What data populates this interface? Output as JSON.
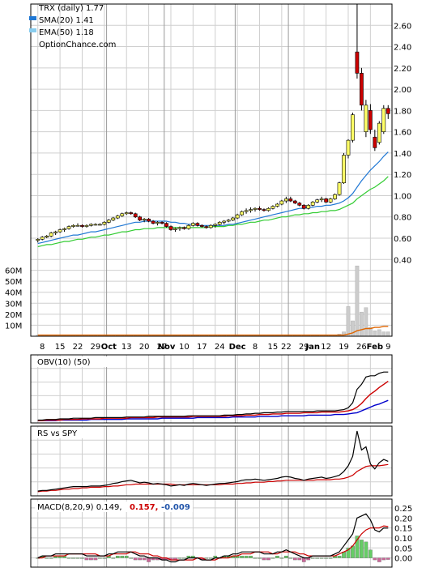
{
  "chart_data": {
    "type": "candlestick",
    "legend": {
      "title": "TRX (daily) 1.77",
      "sma": "SMA(20) 1.41",
      "ema": "EMA(50) 1.18",
      "source": "OptionChance.com"
    },
    "colors": {
      "up": "#ffff66",
      "down": "#cc0000",
      "sma": "#1f77d4",
      "ema": "#33cc33",
      "volume": "#cccccc",
      "volume_avg": "#e06600",
      "obv": "#000000",
      "obv_avg": "#cc0000",
      "obv_long": "#0000cc",
      "rs": "#000000",
      "rs_avg": "#cc0000",
      "macd": "#000000",
      "macd_signal": "#cc0000",
      "hist_up": "#66cc66",
      "hist_down": "#cc6699"
    },
    "price_axis": {
      "ticks": [
        "2.60",
        "2.40",
        "2.20",
        "2.00",
        "1.80",
        "1.60",
        "1.40",
        "1.20",
        "1.00",
        "0.80",
        "0.60",
        "0.40"
      ],
      "range": [
        0.25,
        2.8
      ]
    },
    "volume_axis": {
      "ticks": [
        "60M",
        "50M",
        "40M",
        "30M",
        "20M",
        "10M"
      ],
      "range": [
        0,
        70
      ]
    },
    "x_ticks": [
      "8",
      "15",
      "22",
      "29",
      "Oct",
      "13",
      "20",
      "27",
      "Nov",
      "10",
      "17",
      "24",
      "Dec",
      "8",
      "15",
      "22",
      "29",
      "Jan",
      "12",
      "19",
      "26",
      "Feb",
      "9"
    ],
    "candles": [
      [
        0.58,
        0.6,
        0.56,
        0.59
      ],
      [
        0.59,
        0.62,
        0.58,
        0.61
      ],
      [
        0.61,
        0.63,
        0.6,
        0.62
      ],
      [
        0.62,
        0.66,
        0.61,
        0.65
      ],
      [
        0.65,
        0.67,
        0.63,
        0.66
      ],
      [
        0.66,
        0.69,
        0.65,
        0.68
      ],
      [
        0.68,
        0.7,
        0.66,
        0.69
      ],
      [
        0.69,
        0.72,
        0.68,
        0.71
      ],
      [
        0.71,
        0.73,
        0.7,
        0.72
      ],
      [
        0.72,
        0.74,
        0.71,
        0.72
      ],
      [
        0.72,
        0.73,
        0.7,
        0.71
      ],
      [
        0.71,
        0.73,
        0.7,
        0.72
      ],
      [
        0.72,
        0.74,
        0.71,
        0.73
      ],
      [
        0.73,
        0.74,
        0.72,
        0.73
      ],
      [
        0.73,
        0.74,
        0.72,
        0.73
      ],
      [
        0.73,
        0.76,
        0.72,
        0.75
      ],
      [
        0.75,
        0.78,
        0.74,
        0.77
      ],
      [
        0.77,
        0.8,
        0.76,
        0.79
      ],
      [
        0.79,
        0.82,
        0.78,
        0.81
      ],
      [
        0.81,
        0.84,
        0.8,
        0.83
      ],
      [
        0.83,
        0.85,
        0.82,
        0.84
      ],
      [
        0.84,
        0.85,
        0.82,
        0.83
      ],
      [
        0.83,
        0.84,
        0.79,
        0.8
      ],
      [
        0.8,
        0.81,
        0.76,
        0.77
      ],
      [
        0.77,
        0.79,
        0.75,
        0.78
      ],
      [
        0.78,
        0.79,
        0.75,
        0.76
      ],
      [
        0.76,
        0.77,
        0.73,
        0.74
      ],
      [
        0.74,
        0.76,
        0.72,
        0.75
      ],
      [
        0.75,
        0.76,
        0.73,
        0.74
      ],
      [
        0.74,
        0.75,
        0.7,
        0.71
      ],
      [
        0.71,
        0.72,
        0.67,
        0.68
      ],
      [
        0.68,
        0.7,
        0.66,
        0.69
      ],
      [
        0.69,
        0.71,
        0.67,
        0.7
      ],
      [
        0.7,
        0.71,
        0.68,
        0.69
      ],
      [
        0.69,
        0.73,
        0.68,
        0.72
      ],
      [
        0.72,
        0.75,
        0.71,
        0.74
      ],
      [
        0.74,
        0.75,
        0.71,
        0.72
      ],
      [
        0.72,
        0.73,
        0.7,
        0.71
      ],
      [
        0.71,
        0.72,
        0.69,
        0.7
      ],
      [
        0.7,
        0.73,
        0.69,
        0.72
      ],
      [
        0.72,
        0.74,
        0.7,
        0.73
      ],
      [
        0.73,
        0.76,
        0.72,
        0.75
      ],
      [
        0.75,
        0.77,
        0.73,
        0.76
      ],
      [
        0.76,
        0.78,
        0.75,
        0.77
      ],
      [
        0.77,
        0.8,
        0.76,
        0.79
      ],
      [
        0.79,
        0.83,
        0.78,
        0.82
      ],
      [
        0.82,
        0.86,
        0.81,
        0.85
      ],
      [
        0.85,
        0.88,
        0.83,
        0.86
      ],
      [
        0.86,
        0.89,
        0.84,
        0.87
      ],
      [
        0.87,
        0.89,
        0.85,
        0.88
      ],
      [
        0.88,
        0.9,
        0.86,
        0.87
      ],
      [
        0.87,
        0.88,
        0.85,
        0.86
      ],
      [
        0.86,
        0.89,
        0.85,
        0.88
      ],
      [
        0.88,
        0.91,
        0.87,
        0.9
      ],
      [
        0.9,
        0.93,
        0.89,
        0.92
      ],
      [
        0.92,
        0.96,
        0.91,
        0.95
      ],
      [
        0.95,
        0.99,
        0.93,
        0.97
      ],
      [
        0.97,
        0.99,
        0.94,
        0.95
      ],
      [
        0.95,
        0.96,
        0.92,
        0.93
      ],
      [
        0.93,
        0.94,
        0.9,
        0.91
      ],
      [
        0.91,
        0.92,
        0.87,
        0.88
      ],
      [
        0.88,
        0.92,
        0.87,
        0.91
      ],
      [
        0.91,
        0.95,
        0.9,
        0.94
      ],
      [
        0.94,
        0.97,
        0.93,
        0.96
      ],
      [
        0.96,
        0.99,
        0.94,
        0.97
      ],
      [
        0.97,
        0.98,
        0.93,
        0.94
      ],
      [
        0.94,
        0.98,
        0.93,
        0.97
      ],
      [
        0.97,
        1.02,
        0.96,
        1.01
      ],
      [
        1.01,
        1.13,
        1.0,
        1.12
      ],
      [
        1.12,
        1.4,
        1.11,
        1.38
      ],
      [
        1.38,
        1.53,
        1.35,
        1.52
      ],
      [
        1.52,
        1.78,
        1.5,
        1.76
      ],
      [
        2.35,
        2.8,
        2.1,
        2.15
      ],
      [
        2.15,
        2.2,
        1.8,
        1.85
      ],
      [
        1.6,
        1.9,
        1.55,
        1.85
      ],
      [
        1.8,
        1.86,
        1.58,
        1.62
      ],
      [
        1.55,
        1.62,
        1.42,
        1.45
      ],
      [
        1.5,
        1.7,
        1.48,
        1.68
      ],
      [
        1.6,
        1.85,
        1.58,
        1.82
      ],
      [
        1.82,
        1.85,
        1.72,
        1.77
      ]
    ],
    "sma20": [
      0.55,
      0.56,
      0.57,
      0.58,
      0.59,
      0.6,
      0.61,
      0.62,
      0.63,
      0.63,
      0.64,
      0.65,
      0.66,
      0.66,
      0.67,
      0.68,
      0.69,
      0.7,
      0.71,
      0.72,
      0.73,
      0.74,
      0.75,
      0.75,
      0.76,
      0.76,
      0.76,
      0.76,
      0.76,
      0.76,
      0.75,
      0.75,
      0.74,
      0.74,
      0.73,
      0.73,
      0.72,
      0.72,
      0.72,
      0.72,
      0.72,
      0.72,
      0.72,
      0.73,
      0.73,
      0.74,
      0.75,
      0.76,
      0.77,
      0.78,
      0.79,
      0.8,
      0.81,
      0.82,
      0.83,
      0.84,
      0.85,
      0.86,
      0.87,
      0.88,
      0.88,
      0.89,
      0.89,
      0.9,
      0.9,
      0.91,
      0.91,
      0.92,
      0.93,
      0.95,
      0.98,
      1.02,
      1.08,
      1.14,
      1.19,
      1.24,
      1.28,
      1.32,
      1.37,
      1.41
    ],
    "ema50": [
      0.52,
      0.53,
      0.54,
      0.54,
      0.55,
      0.56,
      0.57,
      0.57,
      0.58,
      0.59,
      0.59,
      0.6,
      0.61,
      0.61,
      0.62,
      0.63,
      0.63,
      0.64,
      0.65,
      0.66,
      0.66,
      0.67,
      0.68,
      0.68,
      0.69,
      0.69,
      0.69,
      0.7,
      0.7,
      0.7,
      0.7,
      0.7,
      0.7,
      0.7,
      0.7,
      0.7,
      0.7,
      0.7,
      0.7,
      0.71,
      0.71,
      0.71,
      0.71,
      0.72,
      0.72,
      0.73,
      0.73,
      0.74,
      0.75,
      0.75,
      0.76,
      0.77,
      0.77,
      0.78,
      0.79,
      0.8,
      0.8,
      0.81,
      0.82,
      0.82,
      0.83,
      0.83,
      0.84,
      0.84,
      0.85,
      0.85,
      0.86,
      0.86,
      0.87,
      0.89,
      0.91,
      0.93,
      0.97,
      1.0,
      1.03,
      1.06,
      1.08,
      1.11,
      1.14,
      1.18
    ],
    "volume": [
      1,
      1,
      1,
      1,
      1,
      1,
      1,
      1,
      1,
      1,
      1,
      1,
      1,
      1,
      1,
      1,
      1,
      1,
      1,
      1,
      1,
      1,
      1,
      1,
      1,
      1,
      1,
      1,
      1,
      1,
      1,
      1,
      1,
      1,
      1,
      1,
      1,
      1,
      1,
      1,
      1,
      1,
      1,
      1,
      1,
      1,
      1,
      1,
      1,
      1,
      1,
      1,
      1,
      1,
      1,
      1,
      1,
      1,
      1,
      1,
      1,
      1,
      1,
      1,
      1,
      1,
      1,
      1,
      2,
      4,
      27,
      14,
      64,
      22,
      26,
      8,
      5,
      6,
      4,
      4
    ],
    "volume_avg": [
      1,
      1,
      1,
      1,
      1,
      1,
      1,
      1,
      1,
      1,
      1,
      1,
      1,
      1,
      1,
      1,
      1,
      1,
      1,
      1,
      1,
      1,
      1,
      1,
      1,
      1,
      1,
      1,
      1,
      1,
      1,
      1,
      1,
      1,
      1,
      1,
      1,
      1,
      1,
      1,
      1,
      1,
      1,
      1,
      1,
      1,
      1,
      1,
      1,
      1,
      1,
      1,
      1,
      1,
      1,
      1,
      1,
      1,
      1,
      1,
      1,
      1,
      1,
      1,
      1,
      1,
      1,
      1,
      1,
      1,
      2,
      3,
      5,
      6,
      7,
      7,
      8,
      8,
      9,
      9
    ],
    "obv": {
      "label": "OBV(10) (50)",
      "range": [
        0,
        100
      ],
      "line": [
        2,
        2,
        3,
        3,
        3,
        4,
        4,
        4,
        5,
        5,
        5,
        5,
        5,
        6,
        6,
        6,
        6,
        6,
        6,
        6,
        7,
        7,
        7,
        7,
        7,
        8,
        8,
        8,
        8,
        8,
        8,
        8,
        8,
        8,
        9,
        9,
        9,
        9,
        9,
        9,
        9,
        9,
        10,
        10,
        10,
        11,
        11,
        12,
        12,
        13,
        13,
        14,
        14,
        14,
        15,
        15,
        16,
        16,
        16,
        16,
        16,
        16,
        16,
        17,
        17,
        17,
        17,
        17,
        18,
        19,
        22,
        30,
        52,
        60,
        72,
        74,
        74,
        78,
        80,
        80
      ],
      "signal": [
        1,
        1,
        2,
        2,
        2,
        2,
        3,
        3,
        3,
        3,
        4,
        4,
        4,
        4,
        4,
        5,
        5,
        5,
        5,
        5,
        5,
        6,
        6,
        6,
        6,
        6,
        6,
        7,
        7,
        7,
        7,
        7,
        7,
        7,
        7,
        8,
        8,
        8,
        8,
        8,
        8,
        8,
        8,
        9,
        9,
        9,
        9,
        10,
        10,
        10,
        11,
        11,
        11,
        12,
        12,
        12,
        13,
        13,
        13,
        13,
        14,
        14,
        14,
        14,
        15,
        15,
        15,
        15,
        15,
        16,
        17,
        19,
        23,
        29,
        37,
        44,
        49,
        55,
        60,
        65
      ],
      "long": [
        1,
        1,
        1,
        1,
        1,
        2,
        2,
        2,
        2,
        2,
        2,
        2,
        3,
        3,
        3,
        3,
        3,
        3,
        3,
        3,
        4,
        4,
        4,
        4,
        4,
        4,
        4,
        4,
        5,
        5,
        5,
        5,
        5,
        5,
        5,
        5,
        6,
        6,
        6,
        6,
        6,
        6,
        6,
        6,
        7,
        7,
        7,
        7,
        7,
        7,
        8,
        8,
        8,
        8,
        8,
        9,
        9,
        9,
        9,
        9,
        9,
        10,
        10,
        10,
        10,
        10,
        10,
        11,
        11,
        11,
        12,
        13,
        14,
        17,
        20,
        23,
        26,
        28,
        31,
        34
      ]
    },
    "rs": {
      "label": "RS vs SPY",
      "range": [
        0,
        100
      ],
      "line": [
        5,
        6,
        6,
        7,
        8,
        9,
        10,
        11,
        12,
        12,
        12,
        12,
        13,
        13,
        13,
        14,
        15,
        17,
        18,
        20,
        21,
        22,
        20,
        18,
        19,
        18,
        16,
        17,
        16,
        15,
        13,
        14,
        15,
        14,
        16,
        17,
        16,
        15,
        14,
        15,
        16,
        17,
        17,
        18,
        19,
        20,
        22,
        23,
        23,
        24,
        23,
        22,
        23,
        24,
        25,
        27,
        28,
        27,
        25,
        24,
        22,
        24,
        25,
        26,
        27,
        25,
        26,
        28,
        30,
        36,
        45,
        60,
        100,
        70,
        75,
        48,
        40,
        50,
        55,
        52
      ],
      "signal": [
        4,
        5,
        5,
        6,
        6,
        7,
        8,
        8,
        9,
        9,
        10,
        10,
        11,
        11,
        11,
        12,
        12,
        13,
        13,
        14,
        15,
        15,
        16,
        16,
        16,
        16,
        16,
        16,
        16,
        16,
        16,
        15,
        15,
        15,
        15,
        15,
        15,
        15,
        15,
        15,
        15,
        15,
        16,
        16,
        16,
        17,
        17,
        18,
        18,
        19,
        19,
        19,
        20,
        20,
        21,
        21,
        22,
        22,
        22,
        22,
        22,
        22,
        22,
        23,
        23,
        23,
        23,
        24,
        24,
        25,
        27,
        30,
        36,
        40,
        44,
        45,
        45,
        45,
        46,
        47
      ]
    },
    "macd": {
      "label": "MACD(8,20,9) 0.149,",
      "signal_label": "0.157,",
      "hist_label": "-0.009",
      "ticks": [
        "0.25",
        "0.20",
        "0.15",
        "0.10",
        "0.05",
        "0.00"
      ],
      "range": [
        -0.03,
        0.27
      ],
      "line": [
        0.0,
        0.01,
        0.01,
        0.01,
        0.02,
        0.02,
        0.02,
        0.02,
        0.02,
        0.02,
        0.02,
        0.01,
        0.01,
        0.01,
        0.01,
        0.01,
        0.02,
        0.02,
        0.03,
        0.03,
        0.03,
        0.03,
        0.02,
        0.01,
        0.01,
        0.0,
        0.0,
        0.0,
        -0.01,
        -0.01,
        -0.02,
        -0.02,
        -0.01,
        -0.01,
        0.0,
        0.0,
        0.0,
        -0.01,
        -0.01,
        -0.01,
        0.0,
        0.0,
        0.01,
        0.01,
        0.02,
        0.02,
        0.03,
        0.03,
        0.03,
        0.03,
        0.03,
        0.02,
        0.02,
        0.02,
        0.03,
        0.03,
        0.04,
        0.03,
        0.02,
        0.01,
        0.0,
        0.0,
        0.01,
        0.01,
        0.01,
        0.01,
        0.01,
        0.02,
        0.03,
        0.06,
        0.09,
        0.12,
        0.2,
        0.21,
        0.22,
        0.19,
        0.14,
        0.13,
        0.15,
        0.149
      ],
      "signal": [
        0.0,
        0.0,
        0.01,
        0.01,
        0.01,
        0.01,
        0.01,
        0.02,
        0.02,
        0.02,
        0.02,
        0.02,
        0.02,
        0.02,
        0.01,
        0.01,
        0.01,
        0.02,
        0.02,
        0.02,
        0.02,
        0.03,
        0.03,
        0.02,
        0.02,
        0.02,
        0.01,
        0.01,
        0.0,
        0.0,
        -0.01,
        -0.01,
        -0.01,
        -0.01,
        -0.01,
        -0.01,
        0.0,
        0.0,
        -0.01,
        -0.01,
        -0.01,
        0.0,
        0.0,
        0.0,
        0.01,
        0.01,
        0.02,
        0.02,
        0.02,
        0.03,
        0.03,
        0.03,
        0.03,
        0.02,
        0.02,
        0.03,
        0.03,
        0.03,
        0.03,
        0.02,
        0.02,
        0.01,
        0.01,
        0.01,
        0.01,
        0.01,
        0.01,
        0.01,
        0.02,
        0.03,
        0.04,
        0.06,
        0.09,
        0.12,
        0.14,
        0.15,
        0.15,
        0.15,
        0.16,
        0.157
      ]
    }
  }
}
